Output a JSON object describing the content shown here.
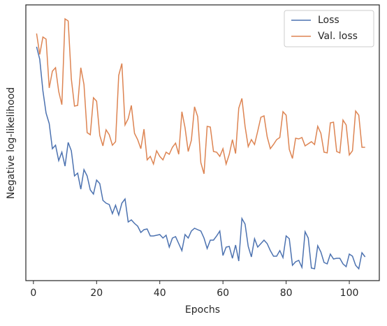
{
  "chart_data": {
    "type": "line",
    "xlabel": "Epochs",
    "ylabel": "Negative log-likelihood",
    "x": [
      1,
      2,
      3,
      4,
      5,
      6,
      7,
      8,
      9,
      10,
      11,
      12,
      13,
      14,
      15,
      16,
      17,
      18,
      19,
      20,
      21,
      22,
      23,
      24,
      25,
      26,
      27,
      28,
      29,
      30,
      31,
      32,
      33,
      34,
      35,
      36,
      37,
      38,
      39,
      40,
      41,
      42,
      43,
      44,
      45,
      46,
      47,
      48,
      49,
      50,
      51,
      52,
      53,
      54,
      55,
      56,
      57,
      58,
      59,
      60,
      61,
      62,
      63,
      64,
      65,
      66,
      67,
      68,
      69,
      70,
      71,
      72,
      73,
      74,
      75,
      76,
      77,
      78,
      79,
      80,
      81,
      82,
      83,
      84,
      85,
      86,
      87,
      88,
      89,
      90,
      91,
      92,
      93,
      94,
      95,
      96,
      97,
      98,
      99,
      100,
      101,
      102,
      103,
      104,
      105
    ],
    "series": [
      {
        "name": "Loss",
        "color": "#4c72b0",
        "values": [
          335,
          317,
          272,
          240,
          225,
          189,
          194,
          172,
          184,
          164,
          198,
          186,
          150,
          154,
          131,
          159,
          150,
          130,
          124,
          144,
          139,
          115,
          111,
          109,
          96,
          108,
          94,
          111,
          117,
          84,
          87,
          82,
          78,
          69,
          73,
          74,
          64,
          64,
          65,
          66,
          61,
          65,
          48,
          61,
          63,
          53,
          43,
          66,
          61,
          71,
          75,
          73,
          71,
          61,
          46,
          58,
          58,
          64,
          71,
          36,
          48,
          49,
          32,
          51,
          28,
          89,
          81,
          49,
          34,
          60,
          48,
          53,
          58,
          53,
          43,
          35,
          35,
          43,
          33,
          64,
          60,
          22,
          27,
          29,
          19,
          70,
          61,
          18,
          17,
          50,
          41,
          26,
          24,
          38,
          31,
          32,
          32,
          24,
          20,
          38,
          35,
          22,
          17,
          40,
          34
        ]
      },
      {
        "name": "Val. loss",
        "color": "#dd8452",
        "values": [
          354,
          324,
          349,
          346,
          276,
          300,
          305,
          271,
          252,
          375,
          372,
          289,
          250,
          251,
          305,
          281,
          212,
          209,
          262,
          257,
          208,
          193,
          216,
          209,
          194,
          199,
          294,
          311,
          223,
          232,
          251,
          211,
          202,
          189,
          217,
          173,
          178,
          167,
          186,
          178,
          173,
          184,
          181,
          191,
          197,
          181,
          242,
          219,
          185,
          201,
          249,
          235,
          169,
          153,
          221,
          220,
          185,
          184,
          178,
          189,
          167,
          181,
          202,
          182,
          247,
          261,
          221,
          192,
          202,
          195,
          214,
          234,
          236,
          206,
          189,
          195,
          202,
          205,
          242,
          237,
          188,
          175,
          204,
          203,
          205,
          193,
          196,
          199,
          195,
          221,
          211,
          184,
          183,
          226,
          227,
          185,
          183,
          230,
          223,
          180,
          186,
          243,
          237,
          191,
          191
        ]
      }
    ],
    "xlim": [
      -2.4,
      109.5
    ],
    "xticks": [
      0,
      20,
      40,
      60,
      80,
      100
    ],
    "ylim": [
      0,
      395
    ],
    "legend": "upper right"
  }
}
